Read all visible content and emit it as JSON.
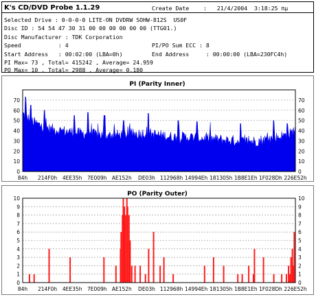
{
  "header": {
    "app_title": "K's CD/DVD Probe 1.1.29",
    "create_date_label": "Create Date",
    "create_date_value": ":   21/4/2004  3:18:25 πμ",
    "selected_drive": "Selected Drive : 0-0-0-0 LITE-ON DVDRW SOHW-812S  US0F",
    "disc_id": "Disc ID : 54 54 47 30 31 00 00 00 00 00 00 (TTG01.)",
    "disc_manufacturer": "Disc Manufacturer : TDK Corporation",
    "speed": "Speed           : 4",
    "pipo_sum_ecc": "PI/PO Sum ECC : 8",
    "start_address": "Start Address   : 00:02:00 (LBA=0h)",
    "end_address": "End Address     : 00:00:00 (LBA=230FC4h)",
    "pi_stats": "PI Max= 73 , Total= 415242 , Average= 24.959",
    "po_stats": "PO Max= 10 , Total= 2988 , Average= 0.180"
  },
  "colors": {
    "pi": "#0000ee",
    "po": "#ff1a1a",
    "grid": "#888888",
    "frame": "#000000"
  },
  "chart_data": [
    {
      "type": "area",
      "title": "PI (Parity Inner)",
      "x_tick_labels": [
        "84h",
        "214F0h",
        "4EE35h",
        "7E009h",
        "AE152h",
        "DE03h",
        "112968h",
        "14994Eh",
        "181305h",
        "1B8E1Eh",
        "1F028Dh",
        "226E52h"
      ],
      "ylim": [
        0,
        80
      ],
      "y_ticks": [
        0,
        10,
        20,
        30,
        40,
        50,
        60,
        70
      ],
      "grid": true,
      "series": [
        {
          "x_points_percent_of_scan": [
            0,
            2,
            5,
            10,
            15,
            20,
            25,
            30,
            35,
            40,
            45,
            50,
            55,
            60,
            65,
            70,
            75,
            80,
            85,
            90,
            95,
            98,
            100
          ],
          "values": [
            55,
            50,
            45,
            40,
            38,
            36,
            35,
            34,
            34,
            35,
            36,
            34,
            32,
            32,
            31,
            30,
            29,
            28,
            28,
            30,
            33,
            35,
            40
          ],
          "typical_fluctuation": 7,
          "peaks": [
            [
              1,
              73
            ],
            [
              3,
              65
            ],
            [
              8,
              60
            ],
            [
              19,
              55
            ],
            [
              24,
              58
            ],
            [
              30,
              55
            ],
            [
              37,
              50
            ],
            [
              46,
              57
            ],
            [
              57,
              50
            ],
            [
              64,
              49
            ],
            [
              80,
              47
            ],
            [
              92,
              50
            ],
            [
              97,
              47
            ]
          ]
        }
      ]
    },
    {
      "type": "bar",
      "title": "PO (Parity Outer)",
      "x_tick_labels": [
        "84h",
        "214F0h",
        "4EE35h",
        "7E009h",
        "AE152h",
        "DE03h",
        "112968h",
        "14994Eh",
        "181305h",
        "1B8E1Eh",
        "1F028Dh",
        "226E52h"
      ],
      "ylim": [
        0,
        10
      ],
      "y_ticks": [
        0,
        1,
        2,
        3,
        4,
        5,
        6,
        7,
        8,
        9,
        10
      ],
      "grid": true,
      "series": [
        {
          "x_points_percent_of_scan": [
            2.5,
            4.2,
            9.7,
            17.4,
            29.8,
            34.2,
            35.9,
            36.1,
            36.6,
            36.9,
            37.3,
            37.7,
            38.2,
            38.5,
            39.0,
            39.4,
            40.0,
            41.2,
            43.1,
            45.0,
            46.2,
            48.0,
            50.4,
            51.8,
            55.2,
            66.7,
            70.0,
            73.7,
            78.9,
            80.5,
            82.9,
            84.6,
            85.0,
            88.3,
            92.1,
            95.0,
            96.7,
            97.5,
            98.0,
            98.4,
            98.9,
            99.3,
            99.6
          ],
          "values": [
            1,
            1,
            4,
            3,
            3,
            2,
            4,
            6,
            8,
            10,
            9,
            8,
            10,
            9,
            8,
            5,
            2,
            2,
            2,
            1,
            4,
            6,
            2,
            3,
            1,
            2,
            3,
            2,
            1,
            1,
            2,
            1,
            4,
            3,
            1,
            1,
            1,
            2,
            1,
            3,
            4,
            2,
            6
          ]
        }
      ]
    }
  ]
}
